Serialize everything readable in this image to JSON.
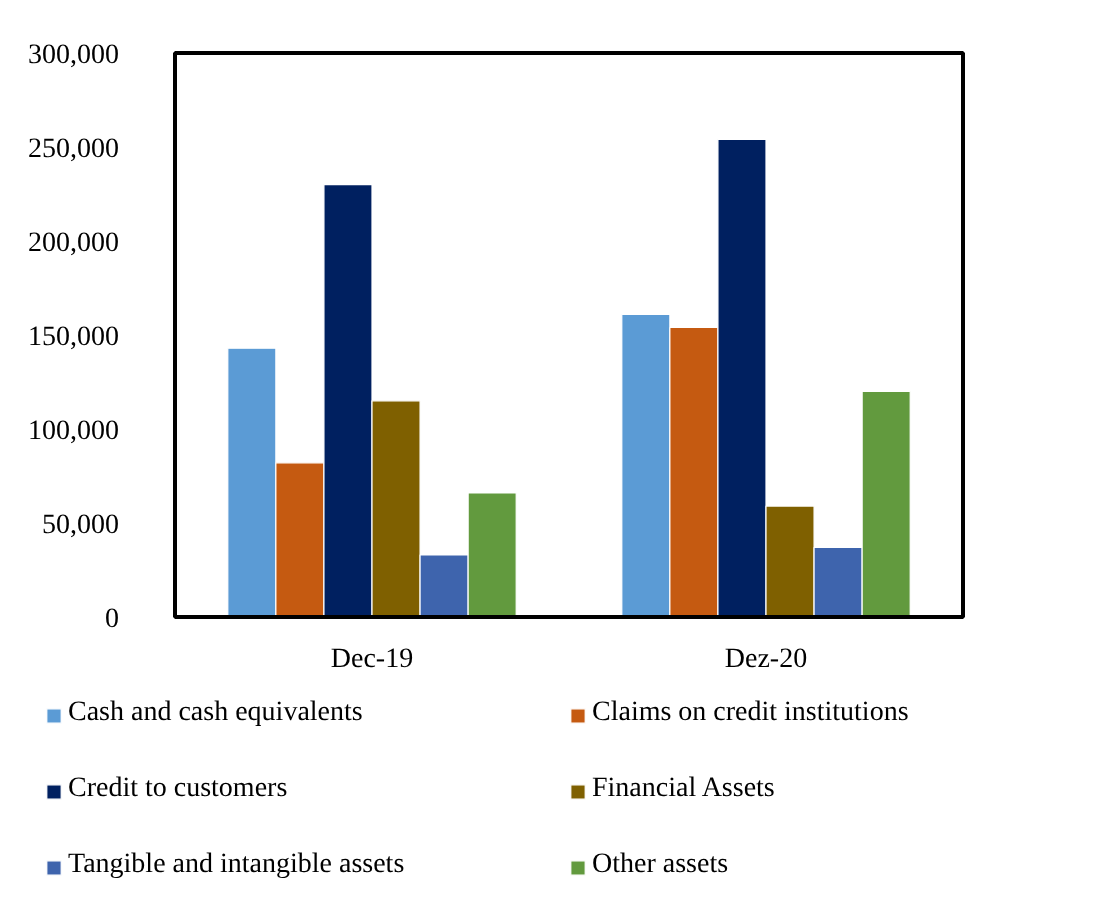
{
  "chart_data": {
    "type": "bar",
    "categories": [
      "Dec-19",
      "Dez-20"
    ],
    "series": [
      {
        "name": "Cash and cash equivalents",
        "color": "#5b9bd5",
        "values": [
          143000,
          161000
        ]
      },
      {
        "name": "Claims on credit institutions",
        "color": "#c55a11",
        "values": [
          82000,
          154000
        ]
      },
      {
        "name": "Credit to customers",
        "color": "#002060",
        "values": [
          230000,
          254000
        ]
      },
      {
        "name": "Financial Assets",
        "color": "#7f6000",
        "values": [
          115000,
          59000
        ]
      },
      {
        "name": "Tangible and intangible assets",
        "color": "#3e64ad",
        "values": [
          33000,
          37000
        ]
      },
      {
        "name": "Other assets",
        "color": "#629a3e",
        "values": [
          66000,
          120000
        ]
      }
    ],
    "ylim": [
      0,
      300000
    ],
    "yticks": [
      0,
      {
        "value": 50000,
        "label": "50,000"
      },
      {
        "value": 100000,
        "label": "100,000"
      },
      {
        "value": 150000,
        "label": "150,000"
      },
      {
        "value": 200000,
        "label": "200,000"
      },
      {
        "value": 250000,
        "label": "250,000"
      },
      {
        "value": 300000,
        "label": "300,000"
      }
    ],
    "grid": false,
    "legend": "bottom"
  }
}
